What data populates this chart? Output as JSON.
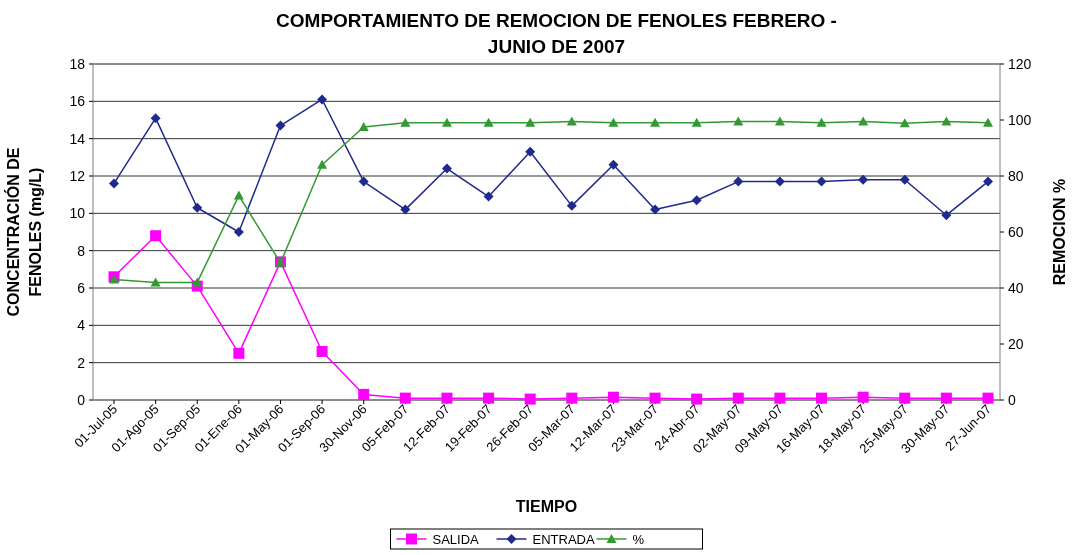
{
  "chart_data": {
    "type": "line",
    "title": "COMPORTAMIENTO DE REMOCION DE FENOLES FEBRERO - JUNIO DE 2007",
    "xlabel": "TIEMPO",
    "ylabel": "CONCENTRACIÓN DE FENOLES (mg/L)",
    "y2label": "REMOCION %",
    "categories": [
      "01-Jul-05",
      "01-Ago-05",
      "01-Sep-05",
      "01-Ene-06",
      "01-May-06",
      "01-Sep-06",
      "30-Nov-06",
      "05-Feb-07",
      "12-Feb-07",
      "19-Feb-07",
      "26-Feb-07",
      "05-Mar-07",
      "12-Mar-07",
      "23-Mar-07",
      "24-Abr-07",
      "02-May-07",
      "09-May-07",
      "16-May-07",
      "18-May-07",
      "25-May-07",
      "30-May-07",
      "27-Jun-07"
    ],
    "series": [
      {
        "name": "SALIDA",
        "color": "#ff00ff",
        "marker": "square",
        "values": [
          6.6,
          8.8,
          6.1,
          2.5,
          7.4,
          2.6,
          0.3,
          0.1,
          0.1,
          0.1,
          0.05,
          0.1,
          0.15,
          0.1,
          0.05,
          0.1,
          0.1,
          0.1,
          0.15,
          0.1,
          0.1,
          0.1
        ]
      },
      {
        "name": "ENTRADA",
        "color": "#1f2a8c",
        "marker": "diamond",
        "values": [
          11.6,
          15.1,
          10.3,
          9.0,
          14.7,
          16.1,
          11.7,
          10.2,
          12.4,
          10.9,
          13.3,
          10.4,
          12.6,
          10.2,
          10.7,
          11.7,
          11.7,
          11.7,
          11.8,
          11.8,
          9.9,
          11.7
        ]
      },
      {
        "name": "%",
        "color": "#339933",
        "marker": "triangle",
        "axis": "y2",
        "values": [
          43,
          42,
          42,
          73,
          49,
          84,
          97.5,
          99,
          99,
          99,
          99,
          99.5,
          99,
          99,
          99,
          99.5,
          99.5,
          99,
          99.5,
          98.8,
          99.5,
          99
        ]
      }
    ],
    "ylim": [
      0,
      18
    ],
    "yticks": [
      0,
      2,
      4,
      6,
      8,
      10,
      12,
      14,
      16,
      18
    ],
    "y2lim": [
      0,
      120
    ],
    "y2ticks": [
      0,
      20,
      40,
      60,
      80,
      100,
      120
    ],
    "grid": "y",
    "legend": "bottom",
    "line_style": "solid"
  }
}
